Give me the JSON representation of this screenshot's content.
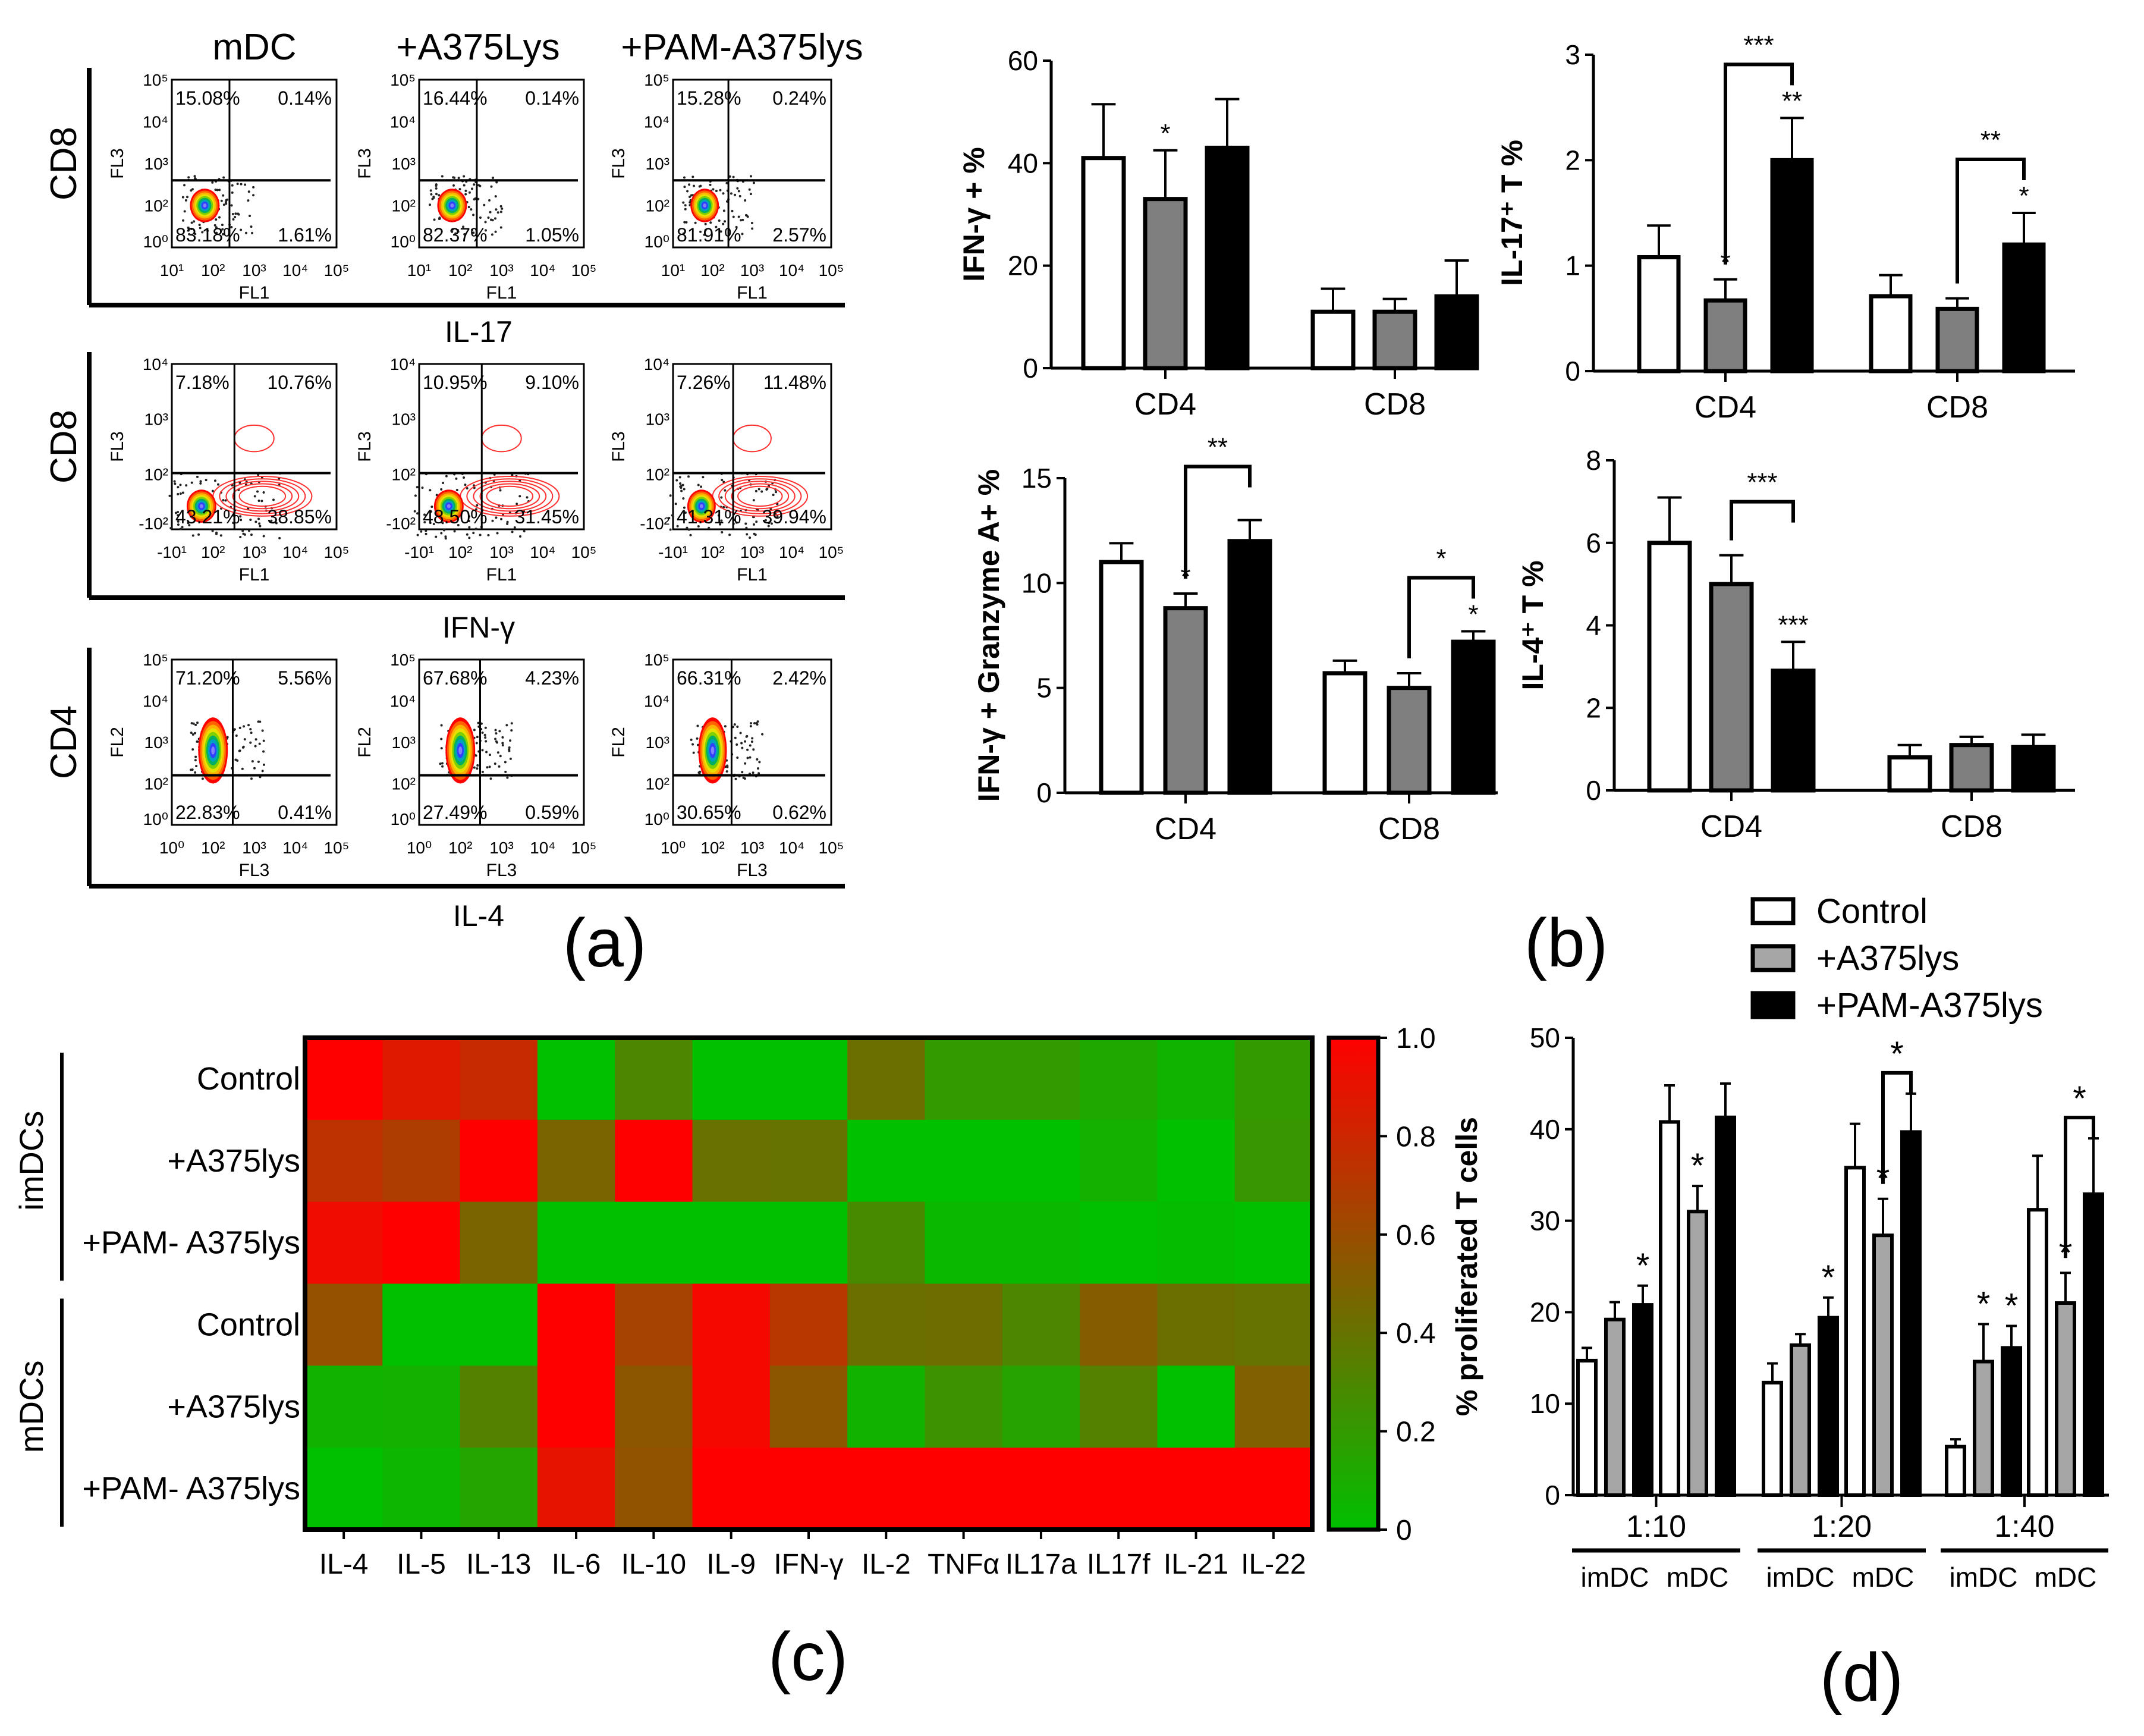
{
  "panel_labels": {
    "a": "(a)",
    "b": "(b)",
    "c": "(c)",
    "d": "(d)"
  },
  "flow": {
    "column_titles": [
      "mDC",
      "+A375Lys",
      "+PAM-A375lys"
    ],
    "section_labels": [
      "IL-17",
      "IFN-γ",
      "IL-4"
    ],
    "rows": [
      {
        "row_label": "CD8",
        "x_axis": "FL1",
        "y_axis": "FL3",
        "x_ticks": [
          "10¹",
          "10²",
          "10³",
          "10⁴",
          "10⁵"
        ],
        "y_ticks": [
          "10⁰",
          "10²",
          "10³",
          "10⁴",
          "10⁵"
        ],
        "plots": [
          {
            "quadrants": [
              "15.08%",
              "0.14%",
              "83.18%",
              "1.61%"
            ]
          },
          {
            "quadrants": [
              "16.44%",
              "0.14%",
              "82.37%",
              "1.05%"
            ]
          },
          {
            "quadrants": [
              "15.28%",
              "0.24%",
              "81.91%",
              "2.57%"
            ]
          }
        ]
      },
      {
        "row_label": "CD8",
        "x_axis": "FL1",
        "y_axis": "FL3",
        "x_ticks": [
          "-10¹",
          "10²",
          "10³",
          "10⁴",
          "10⁵"
        ],
        "y_ticks": [
          "-10²",
          "10²",
          "10³",
          "10⁴"
        ],
        "plots": [
          {
            "quadrants": [
              "7.18%",
              "10.76%",
              "43.21%",
              "38.85%"
            ]
          },
          {
            "quadrants": [
              "10.95%",
              "9.10%",
              "48.50%",
              "31.45%"
            ]
          },
          {
            "quadrants": [
              "7.26%",
              "11.48%",
              "41.31%",
              "39.94%"
            ]
          }
        ]
      },
      {
        "row_label": "CD4",
        "x_axis": "FL3",
        "y_axis": "FL2",
        "x_ticks": [
          "10⁰",
          "10²",
          "10³",
          "10⁴",
          "10⁵"
        ],
        "y_ticks": [
          "10⁰",
          "10²",
          "10³",
          "10⁴",
          "10⁵"
        ],
        "plots": [
          {
            "quadrants": [
              "71.20%",
              "5.56%",
              "22.83%",
              "0.41%"
            ]
          },
          {
            "quadrants": [
              "67.68%",
              "4.23%",
              "27.49%",
              "0.59%"
            ]
          },
          {
            "quadrants": [
              "66.31%",
              "2.42%",
              "30.65%",
              "0.62%"
            ]
          }
        ]
      }
    ]
  },
  "legend": {
    "items": [
      {
        "label": "Control",
        "color": "#ffffff"
      },
      {
        "label": "+A375lys",
        "color": "#a6a6a6"
      },
      {
        "label": "+PAM-A375lys",
        "color": "#000000"
      }
    ]
  },
  "chart_data": [
    {
      "id": "b1",
      "type": "bar",
      "ylabel": "IFN-γ + %",
      "ylim": [
        0,
        60
      ],
      "yticks": [
        0,
        20,
        40,
        60
      ],
      "categories": [
        "CD4",
        "CD8"
      ],
      "series": [
        {
          "name": "Control",
          "values": [
            41,
            11
          ],
          "errors": [
            10.5,
            4.5
          ]
        },
        {
          "name": "+A375lys",
          "values": [
            33,
            11
          ],
          "errors": [
            9.5,
            2.5
          ]
        },
        {
          "name": "+PAM-A375lys",
          "values": [
            43,
            14
          ],
          "errors": [
            9.5,
            7
          ]
        }
      ],
      "stars": [
        {
          "group": 0,
          "bar": 1,
          "text": "*"
        }
      ],
      "brackets": []
    },
    {
      "id": "b2",
      "type": "bar",
      "ylabel": "IL-17⁺ T %",
      "ylim": [
        0,
        3
      ],
      "yticks": [
        0,
        1,
        2,
        3
      ],
      "categories": [
        "CD4",
        "CD8"
      ],
      "series": [
        {
          "name": "Control",
          "values": [
            1.08,
            0.71
          ],
          "errors": [
            0.3,
            0.2
          ]
        },
        {
          "name": "+A375lys",
          "values": [
            0.67,
            0.59
          ],
          "errors": [
            0.2,
            0.1
          ]
        },
        {
          "name": "+PAM-A375lys",
          "values": [
            2.0,
            1.2
          ],
          "errors": [
            0.4,
            0.3
          ]
        }
      ],
      "stars": [
        {
          "group": 0,
          "bar": 1,
          "text": "*"
        },
        {
          "group": 0,
          "bar": 2,
          "text": "**"
        },
        {
          "group": 1,
          "bar": 2,
          "text": "*"
        }
      ],
      "brackets": [
        {
          "group": 0,
          "from": 1,
          "to": 2,
          "text": "***"
        },
        {
          "group": 1,
          "from": 1,
          "to": 2,
          "text": "**"
        }
      ]
    },
    {
      "id": "b3",
      "type": "bar",
      "ylabel": "IFN-γ +  Granzyme A+ %",
      "ylim": [
        0,
        15
      ],
      "yticks": [
        0,
        5,
        10,
        15
      ],
      "categories": [
        "CD4",
        "CD8"
      ],
      "series": [
        {
          "name": "Control",
          "values": [
            11,
            5.7
          ],
          "errors": [
            0.9,
            0.6
          ]
        },
        {
          "name": "+A375lys",
          "values": [
            8.8,
            5.0
          ],
          "errors": [
            0.7,
            0.7
          ]
        },
        {
          "name": "+PAM-A375lys",
          "values": [
            12,
            7.2
          ],
          "errors": [
            1.0,
            0.5
          ]
        }
      ],
      "stars": [
        {
          "group": 0,
          "bar": 1,
          "text": "*"
        },
        {
          "group": 1,
          "bar": 2,
          "text": "*"
        }
      ],
      "brackets": [
        {
          "group": 0,
          "from": 1,
          "to": 2,
          "text": "**"
        },
        {
          "group": 1,
          "from": 1,
          "to": 2,
          "text": "*"
        }
      ]
    },
    {
      "id": "b4",
      "type": "bar",
      "ylabel": "IL-4⁺ T %",
      "ylim": [
        0,
        8
      ],
      "yticks": [
        0,
        2,
        4,
        6,
        8
      ],
      "categories": [
        "CD4",
        "CD8"
      ],
      "series": [
        {
          "name": "Control",
          "values": [
            6.0,
            0.8
          ],
          "errors": [
            1.1,
            0.3
          ]
        },
        {
          "name": "+A375lys",
          "values": [
            5.0,
            1.1
          ],
          "errors": [
            0.7,
            0.2
          ]
        },
        {
          "name": "+PAM-A375lys",
          "values": [
            2.9,
            1.05
          ],
          "errors": [
            0.7,
            0.3
          ]
        }
      ],
      "stars": [
        {
          "group": 0,
          "bar": 2,
          "text": "***"
        }
      ],
      "brackets": [
        {
          "group": 0,
          "from": 1,
          "to": 2,
          "text": "***"
        }
      ]
    },
    {
      "id": "c",
      "type": "heatmap",
      "groups": [
        {
          "label": "imDCs",
          "rows": [
            "Control",
            "+A375lys",
            "+PAM- A375lys"
          ]
        },
        {
          "label": "mDCs",
          "rows": [
            "Control",
            "+A375lys",
            "+PAM- A375lys"
          ]
        }
      ],
      "columns": [
        "IL-4",
        "IL-5",
        "IL-13",
        "IL-6",
        "IL-10",
        "IL-9",
        "IFN-γ",
        "IL-2",
        "TNFα",
        "IL17a",
        "IL17f",
        "IL-21",
        "IL-22"
      ],
      "values": [
        [
          1.0,
          0.87,
          0.78,
          0.0,
          0.3,
          0.0,
          0.0,
          0.42,
          0.2,
          0.2,
          0.12,
          0.06,
          0.2
        ],
        [
          0.74,
          0.68,
          1.0,
          0.48,
          1.0,
          0.41,
          0.4,
          0.0,
          0.0,
          0.0,
          0.08,
          0.0,
          0.22
        ],
        [
          0.94,
          1.0,
          0.48,
          0.0,
          0.0,
          0.0,
          0.0,
          0.28,
          0.04,
          0.04,
          0.0,
          0.02,
          0.0
        ],
        [
          0.58,
          0.0,
          0.0,
          1.0,
          0.65,
          0.96,
          0.72,
          0.42,
          0.43,
          0.3,
          0.52,
          0.42,
          0.4
        ],
        [
          0.07,
          0.08,
          0.33,
          1.0,
          0.55,
          0.96,
          0.55,
          0.07,
          0.24,
          0.15,
          0.33,
          0.0,
          0.5
        ],
        [
          0.0,
          0.05,
          0.14,
          0.9,
          0.57,
          1.0,
          1.0,
          1.0,
          1.0,
          1.0,
          1.0,
          1.0,
          1.0
        ]
      ],
      "colorbar": {
        "range": [
          0,
          1
        ],
        "ticks": [
          "0",
          "0.2",
          "0.4",
          "0.6",
          "0.8",
          "1.0"
        ],
        "low_color": "#00c000",
        "high_color": "#ff0000"
      }
    },
    {
      "id": "d",
      "type": "bar",
      "ylabel": "% proliferated  T cells",
      "ylim": [
        0,
        50
      ],
      "yticks": [
        0,
        10,
        20,
        30,
        40,
        50
      ],
      "ratios": [
        "1:10",
        "1:20",
        "1:40"
      ],
      "subgroups": [
        "imDC",
        "mDC"
      ],
      "groups": [
        {
          "ratio": "1:10",
          "dc": "imDC",
          "values": [
            14.7,
            19.2,
            20.8
          ],
          "errors": [
            1.4,
            1.9,
            2.1
          ]
        },
        {
          "ratio": "1:10",
          "dc": "mDC",
          "values": [
            40.8,
            31.0,
            41.3
          ],
          "errors": [
            4.0,
            2.8,
            3.7
          ]
        },
        {
          "ratio": "1:20",
          "dc": "imDC",
          "values": [
            12.3,
            16.4,
            19.4
          ],
          "errors": [
            2.1,
            1.2,
            2.2
          ]
        },
        {
          "ratio": "1:20",
          "dc": "mDC",
          "values": [
            35.8,
            28.4,
            39.7
          ],
          "errors": [
            4.8,
            4.0,
            4.2
          ]
        },
        {
          "ratio": "1:40",
          "dc": "imDC",
          "values": [
            5.3,
            14.6,
            16.1
          ],
          "errors": [
            0.8,
            4.1,
            2.4
          ]
        },
        {
          "ratio": "1:40",
          "dc": "mDC",
          "values": [
            31.2,
            21.0,
            32.9
          ],
          "errors": [
            5.9,
            3.3,
            6.1
          ]
        }
      ],
      "series_names": [
        "Control",
        "+A375lys",
        "+PAM-A375lys"
      ],
      "stars": [
        {
          "group": 0,
          "bar": 2,
          "text": "*"
        },
        {
          "group": 1,
          "bar": 1,
          "text": "*"
        },
        {
          "group": 2,
          "bar": 2,
          "text": "*"
        },
        {
          "group": 3,
          "bar": 1,
          "text": "*"
        },
        {
          "group": 4,
          "bar": 1,
          "text": "*"
        },
        {
          "group": 4,
          "bar": 2,
          "text": "*"
        },
        {
          "group": 5,
          "bar": 1,
          "text": "*"
        }
      ],
      "brackets": [
        {
          "group": 3,
          "from": 1,
          "to": 2,
          "text": "*"
        },
        {
          "group": 5,
          "from": 1,
          "to": 2,
          "text": "*"
        }
      ]
    }
  ],
  "colors": {
    "control": "#ffffff",
    "a375_b": "#7f7f7f",
    "a375_d": "#a6a6a6",
    "pam": "#000000"
  }
}
